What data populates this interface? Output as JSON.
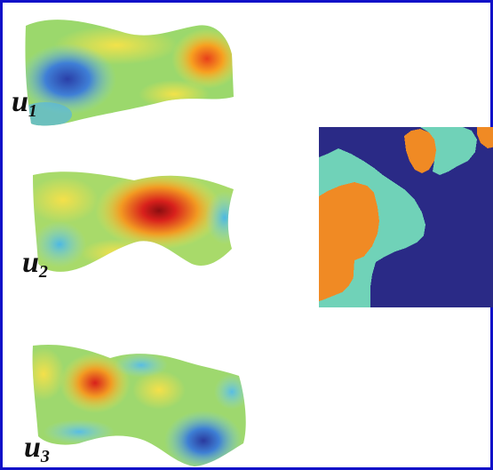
{
  "labels": {
    "u1_base": "u",
    "u1_sub": "1",
    "u2_base": "u",
    "u2_sub": "2",
    "u3_base": "u",
    "u3_sub": "3"
  },
  "colors": {
    "frame_border": "#1010c8",
    "segment_dark_blue": "#2a2a86",
    "segment_orange": "#f08a24",
    "segment_teal": "#70d2b8",
    "surface_low": "#2e4fb8",
    "surface_mid": "#9ad86a",
    "surface_high": "#c8141a"
  },
  "figure": {
    "panels": [
      "surface-u1",
      "surface-u2",
      "surface-u3",
      "segmentation-map"
    ]
  }
}
